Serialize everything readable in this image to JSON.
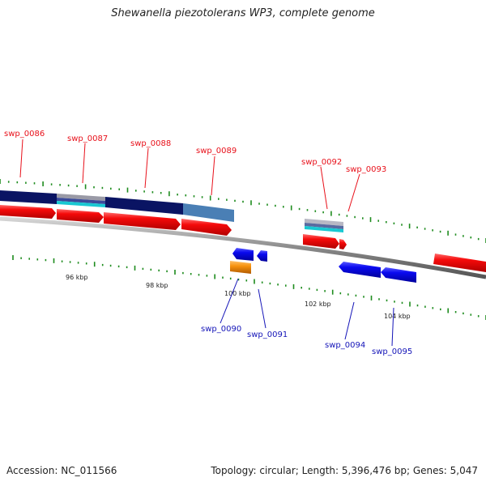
{
  "title": "Shewanella piezotolerans WP3, complete genome",
  "footer": {
    "accession": "Accession: NC_011566",
    "summary": "Topology: circular; Length: 5,396,476 bp; Genes: 5,047"
  },
  "scale_labels": [
    "96 kbp",
    "98 kbp",
    "100 kbp",
    "102 kbp",
    "104 kbp"
  ],
  "genes": {
    "g0086": "swp_0086",
    "g0087": "swp_0087",
    "g0088": "swp_0088",
    "g0089": "swp_0089",
    "g0090": "swp_0090",
    "g0091": "swp_0091",
    "g0092": "swp_0092",
    "g0093": "swp_0093",
    "g0094": "swp_0094",
    "g0095": "swp_0095"
  },
  "colors": {
    "forward_label": "#e8101a",
    "reverse_label": "#1414b8",
    "cds": "#f50a0a",
    "cds_reverse": "#0a0af0",
    "rna": "#f7930e",
    "backbone": "#888888",
    "cog_navy": "#0a1463",
    "cog_steel": "#4a7fb5",
    "cog_gray": "#9a9aa6",
    "cog_cyan": "#19c8d2",
    "tick_green": "#1e8c1e"
  }
}
